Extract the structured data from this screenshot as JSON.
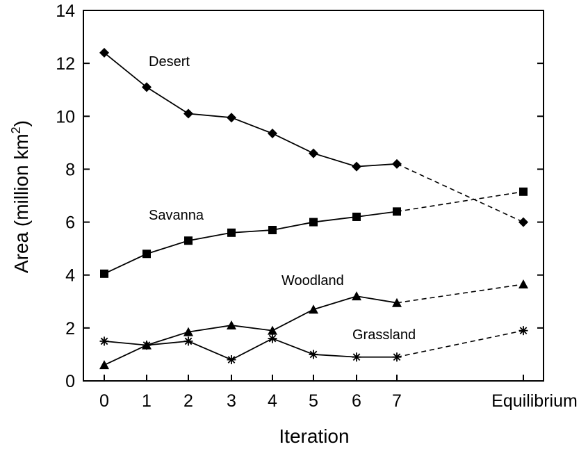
{
  "chart_data": {
    "type": "line",
    "xlabel": "Iteration",
    "ylabel": "Area (million km",
    "ylabel_sup": "2",
    "ylabel_close": ")",
    "categories": [
      "0",
      "1",
      "2",
      "3",
      "4",
      "5",
      "6",
      "7",
      "Equilibrium"
    ],
    "ylim": [
      0,
      14
    ],
    "yticks": [
      "0",
      "2",
      "4",
      "6",
      "8",
      "10",
      "12",
      "14"
    ],
    "grid": false,
    "legend": "none",
    "series": [
      {
        "name": "Desert",
        "marker": "diamond",
        "values": [
          12.4,
          11.1,
          10.1,
          9.95,
          9.35,
          8.6,
          8.1,
          8.2,
          6.0
        ]
      },
      {
        "name": "Savanna",
        "marker": "square",
        "values": [
          4.05,
          4.8,
          5.3,
          5.6,
          5.7,
          6.0,
          6.2,
          6.4,
          7.15
        ]
      },
      {
        "name": "Woodland",
        "marker": "triangle",
        "values": [
          0.6,
          1.35,
          1.85,
          2.1,
          1.9,
          2.7,
          3.2,
          2.95,
          3.65
        ]
      },
      {
        "name": "Grassland",
        "marker": "asterisk",
        "values": [
          1.5,
          1.35,
          1.5,
          0.8,
          1.6,
          1.0,
          0.9,
          0.9,
          1.9
        ]
      }
    ],
    "note": "Segment from iteration 7 to Equilibrium is drawn dashed"
  }
}
